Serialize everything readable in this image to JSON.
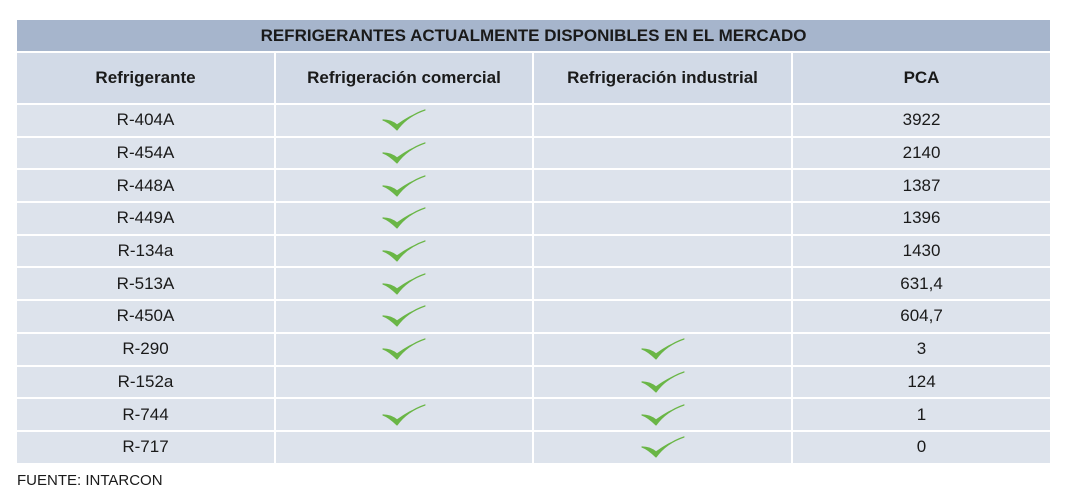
{
  "title": "REFRIGERANTES ACTUALMENTE DISPONIBLES EN EL MERCADO",
  "headers": {
    "refrigerant": "Refrigerante",
    "commercial": "Refrigeración comercial",
    "industrial": "Refrigeración industrial",
    "pca": "PCA"
  },
  "rows": [
    {
      "name": "R-404A",
      "commercial": true,
      "industrial": false,
      "pca": "3922"
    },
    {
      "name": "R-454A",
      "commercial": true,
      "industrial": false,
      "pca": "2140"
    },
    {
      "name": "R-448A",
      "commercial": true,
      "industrial": false,
      "pca": "1387"
    },
    {
      "name": "R-449A",
      "commercial": true,
      "industrial": false,
      "pca": "1396"
    },
    {
      "name": "R-134a",
      "commercial": true,
      "industrial": false,
      "pca": "1430"
    },
    {
      "name": "R-513A",
      "commercial": true,
      "industrial": false,
      "pca": "631,4"
    },
    {
      "name": "R-450A",
      "commercial": true,
      "industrial": false,
      "pca": "604,7"
    },
    {
      "name": "R-290",
      "commercial": true,
      "industrial": true,
      "pca": "3"
    },
    {
      "name": "R-152a",
      "commercial": false,
      "industrial": true,
      "pca": "124"
    },
    {
      "name": "R-744",
      "commercial": true,
      "industrial": true,
      "pca": "1"
    },
    {
      "name": "R-717",
      "commercial": false,
      "industrial": true,
      "pca": "0"
    }
  ],
  "icons": {
    "check": "checkmark-icon"
  },
  "colors": {
    "title_bg": "#a6b5cc",
    "header_bg": "#d2dae7",
    "row_bg": "#dde3ec",
    "check": "#6ab646"
  },
  "source": "FUENTE: INTARCON"
}
